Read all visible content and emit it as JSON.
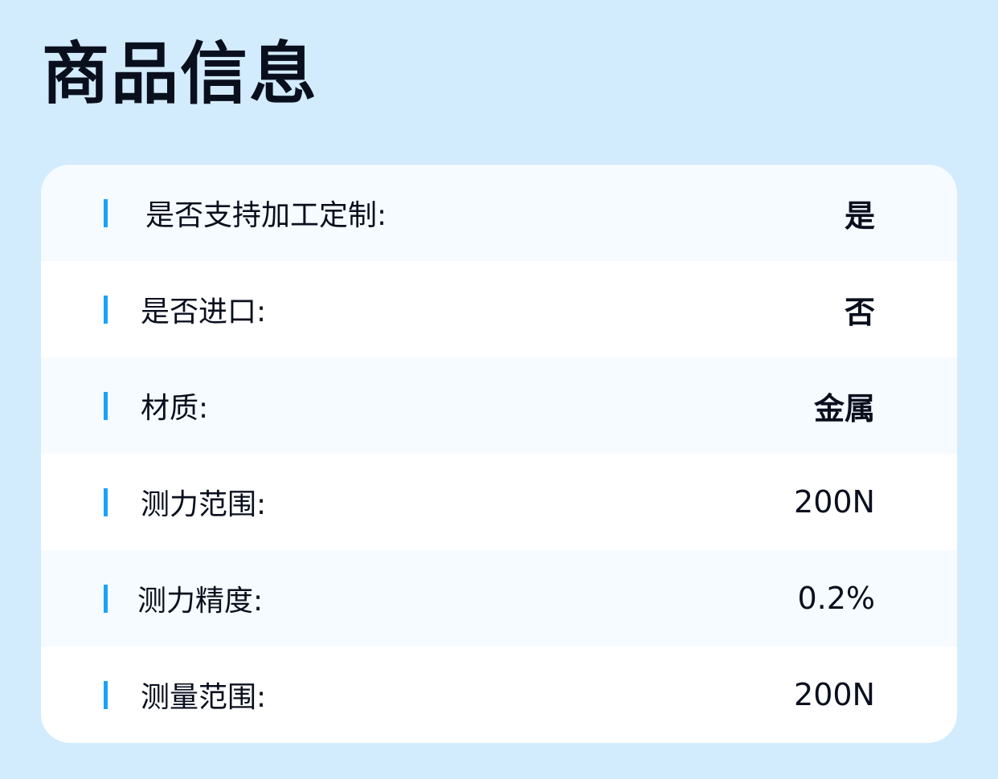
{
  "title": "商品信息",
  "accent": "#1aa3f5",
  "rows": [
    {
      "label": "是否支持加工定制:",
      "value": "是"
    },
    {
      "label": "是否进口:",
      "value": "否"
    },
    {
      "label": "材质:",
      "value": "金属"
    },
    {
      "label": "测力范围:",
      "value": "200N"
    },
    {
      "label": "测力精度:",
      "value": "0.2%"
    },
    {
      "label": "测量范围:",
      "value": "200N"
    }
  ]
}
